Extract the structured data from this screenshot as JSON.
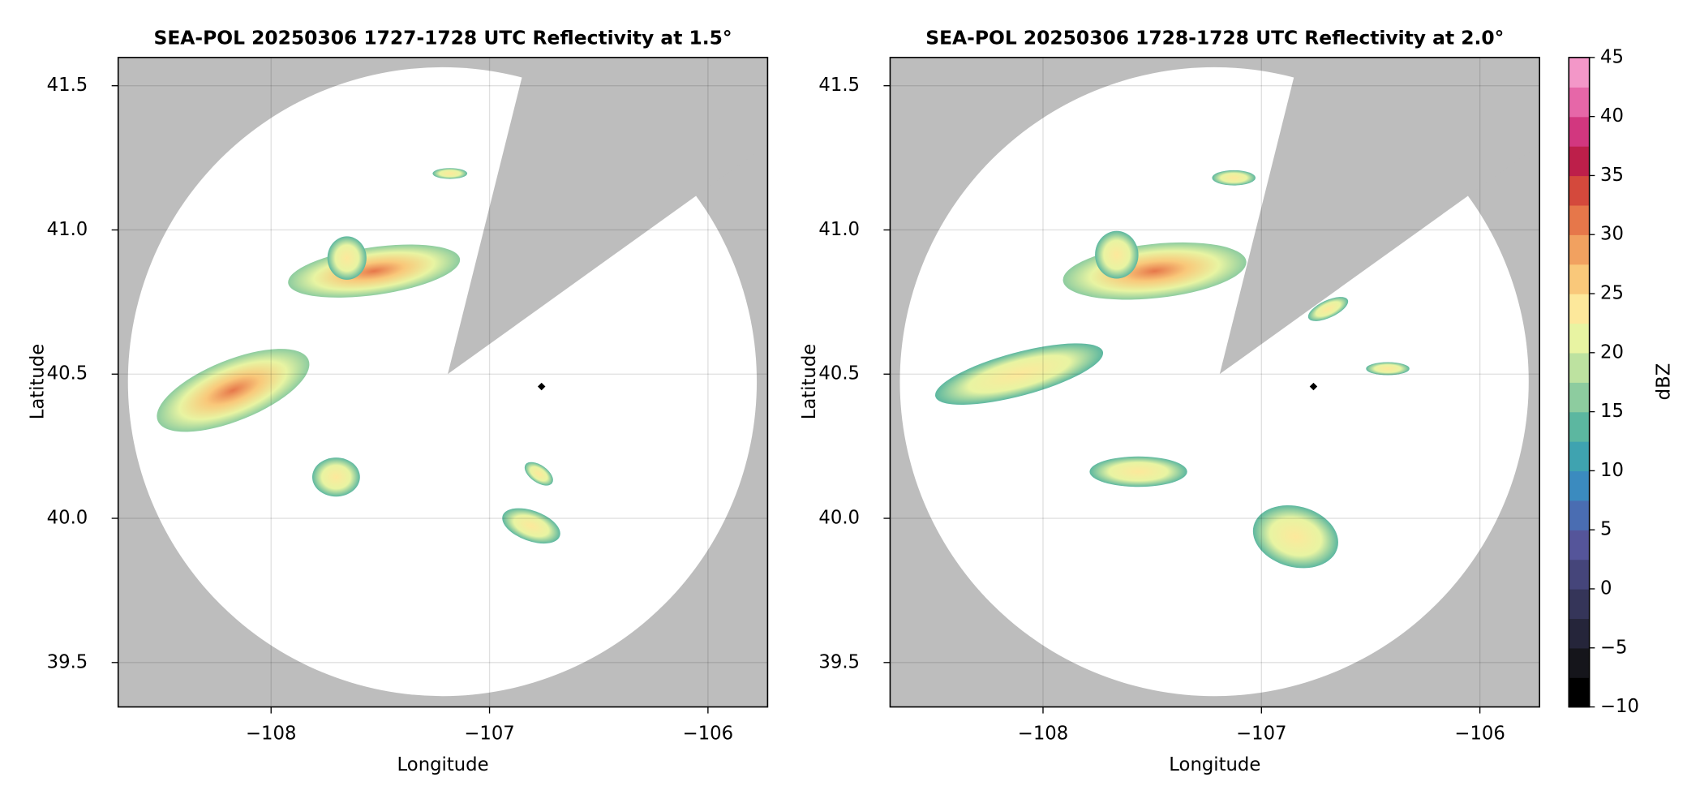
{
  "chart_data": [
    {
      "type": "radar",
      "title": "SEA-POL 20250306 1727-1728 UTC Reflectivity at 1.5°",
      "x_label": "Longitude",
      "y_label": "Latitude",
      "xlim": [
        -108.7,
        -105.727
      ],
      "ylim": [
        39.346,
        41.598
      ],
      "xticks": [
        {
          "value": -108,
          "label": "−108"
        },
        {
          "value": -107,
          "label": "−107"
        },
        {
          "value": -106,
          "label": "−106"
        }
      ],
      "yticks": [
        39.5,
        {
          "value": 40,
          "label": "40.0"
        },
        40.5,
        {
          "value": 41,
          "label": "41.0"
        },
        41.5
      ],
      "grid": true
    },
    {
      "type": "radar",
      "title": "SEA-POL 20250306 1728-1728 UTC Reflectivity at 2.0°",
      "x_label": "Longitude",
      "y_label": "Latitude",
      "xlim": [
        -108.7,
        -105.727
      ],
      "ylim": [
        39.346,
        41.598
      ],
      "xticks": [
        {
          "value": -108,
          "label": "−108"
        },
        {
          "value": -107,
          "label": "−107"
        },
        {
          "value": -106,
          "label": "−106"
        }
      ],
      "yticks": [
        39.5,
        {
          "value": 40,
          "label": "40.0"
        },
        40.5,
        {
          "value": 41,
          "label": "41.0"
        },
        41.5
      ],
      "grid": true,
      "colorbar": {
        "label": "dBZ",
        "lim": [
          -10,
          45
        ],
        "ticks": [
          {
            "value": -10,
            "label": "−10"
          },
          {
            "value": -5,
            "label": "−5"
          },
          0,
          5,
          10,
          15,
          20,
          25,
          30,
          35,
          40,
          45
        ],
        "colors": [
          "#000000",
          "#15151b",
          "#25253a",
          "#353559",
          "#45457a",
          "#55559a",
          "#4a6db2",
          "#3b8bbf",
          "#3fa3b0",
          "#5cb7a0",
          "#8dcc9f",
          "#bde2a0",
          "#e8f4a2",
          "#fde89b",
          "#f9c87a",
          "#f1a160",
          "#e6774a",
          "#d4493c",
          "#bd1f4a",
          "#d2377f",
          "#e667a8",
          "#f397c8"
        ]
      }
    }
  ]
}
